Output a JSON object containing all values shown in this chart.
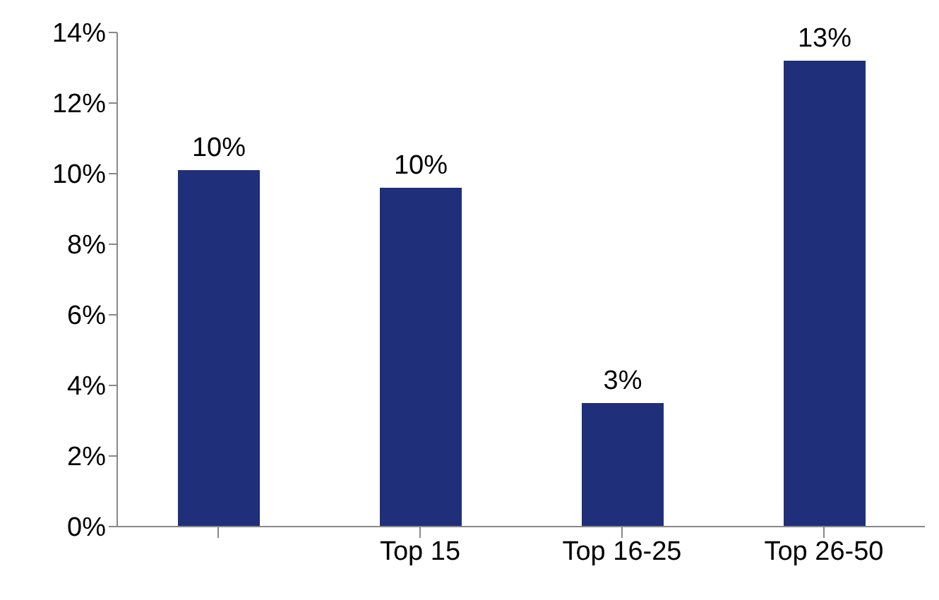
{
  "chart_data": {
    "type": "bar",
    "categories": [
      null,
      "Top 15",
      "Top 16-25",
      "Top 26-50"
    ],
    "values": [
      10.1,
      9.6,
      3.5,
      13.2
    ],
    "color": "#1f2f7a",
    "value_labels": [
      "10%",
      "10%",
      "3%",
      "13%"
    ],
    "ylim": [
      0,
      14
    ],
    "yticks": [
      {
        "value": 0,
        "label": "0%"
      },
      {
        "value": 2,
        "label": "2%"
      },
      {
        "value": 4,
        "label": "4%"
      },
      {
        "value": 6,
        "label": "6%"
      },
      {
        "value": 8,
        "label": "8%"
      },
      {
        "value": 10,
        "label": "10%"
      },
      {
        "value": 12,
        "label": "12%"
      },
      {
        "value": 14,
        "label": "14%"
      }
    ],
    "grid": false,
    "legend": false
  }
}
